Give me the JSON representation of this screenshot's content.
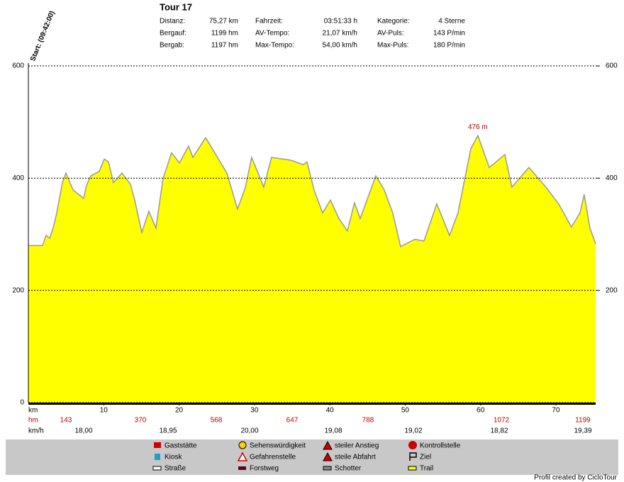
{
  "header": {
    "title": "Tour 17",
    "stats": [
      [
        "Distanz:",
        "75,27 km"
      ],
      [
        "Bergauf:",
        "1199 hm"
      ],
      [
        "Bergab:",
        "1197 hm"
      ],
      [
        "Fahrzeit:",
        "03:51:33 h"
      ],
      [
        "AV-Tempo:",
        "21,07 km/h"
      ],
      [
        "Max-Tempo:",
        "54,00 km/h"
      ],
      [
        "Kategorie:",
        "4 Sterne"
      ],
      [
        "AV-Puls:",
        "143 P/min"
      ],
      [
        "Max-Puls:",
        "180 P/min"
      ]
    ]
  },
  "chart_data": {
    "type": "area",
    "start_label": "Start: (09:42:00)",
    "x_label": "km",
    "x": [
      0,
      1.88,
      2.35,
      2.82,
      3.29,
      3.76,
      4.52,
      4.99,
      5.93,
      7.34,
      7.71,
      8.28,
      9.41,
      10.07,
      10.63,
      11.29,
      12.42,
      13.55,
      14.11,
      15.05,
      15.99,
      16.93,
      17.87,
      19.0,
      20.04,
      21.26,
      21.83,
      23.52,
      24.65,
      26.34,
      27.75,
      28.79,
      29.63,
      31.23,
      32.27,
      34.81,
      36.5,
      36.97,
      37.91,
      39.04,
      40.08,
      41.2,
      42.33,
      43.27,
      44.03,
      46.1,
      47.22,
      48.35,
      49.39,
      51.27,
      52.49,
      54.19,
      55.88,
      57.01,
      58.7,
      59.64,
      61.15,
      63.22,
      64.16,
      66.42,
      68.67,
      70.37,
      72.06,
      73.19,
      73.75,
      74.51,
      75.27
    ],
    "values": [
      280,
      280,
      298,
      293,
      311,
      338,
      392,
      409,
      379,
      364,
      387,
      404,
      412,
      434,
      429,
      392,
      409,
      389,
      361,
      303,
      341,
      311,
      399,
      445,
      427,
      457,
      437,
      472,
      447,
      409,
      345,
      383,
      437,
      384,
      437,
      432,
      424,
      429,
      379,
      338,
      361,
      328,
      306,
      356,
      328,
      404,
      379,
      338,
      278,
      291,
      288,
      354,
      298,
      338,
      452,
      476,
      419,
      442,
      384,
      419,
      384,
      354,
      313,
      338,
      371,
      311,
      283
    ],
    "color": "#ffff00",
    "line_color": "#999999",
    "xlim": [
      0,
      75.27
    ],
    "xticks": [
      10,
      20,
      30,
      40,
      50,
      60,
      70
    ],
    "ylim": [
      0,
      600
    ],
    "yticks": [
      0,
      200,
      400,
      600
    ],
    "y2lim": [
      0,
      600
    ],
    "y2ticks": [
      200,
      400,
      600
    ],
    "grid": true,
    "annotations": [
      {
        "text": "476 m",
        "x": 59.64,
        "y": 476
      }
    ]
  },
  "summary": {
    "hm_label": "hm",
    "hm": [
      143,
      370,
      568,
      647,
      788,
      1072,
      1199
    ],
    "kmh_label": "km/h",
    "kmh": [
      "18,00",
      "18,95",
      "20,00",
      "19,08",
      "19,02",
      "18,82",
      "19,39"
    ]
  },
  "legend": [
    "Gaststätte",
    "Kiosk",
    "Straße",
    "Sehenswürdigkeit",
    "Gefahrenstelle",
    "Forstweg",
    "steiler Anstieg",
    "steile Abfahrt",
    "Schotter",
    "Kontrollstelle",
    "Ziel",
    "Trail"
  ],
  "credit": "Profil created by CicloTour"
}
